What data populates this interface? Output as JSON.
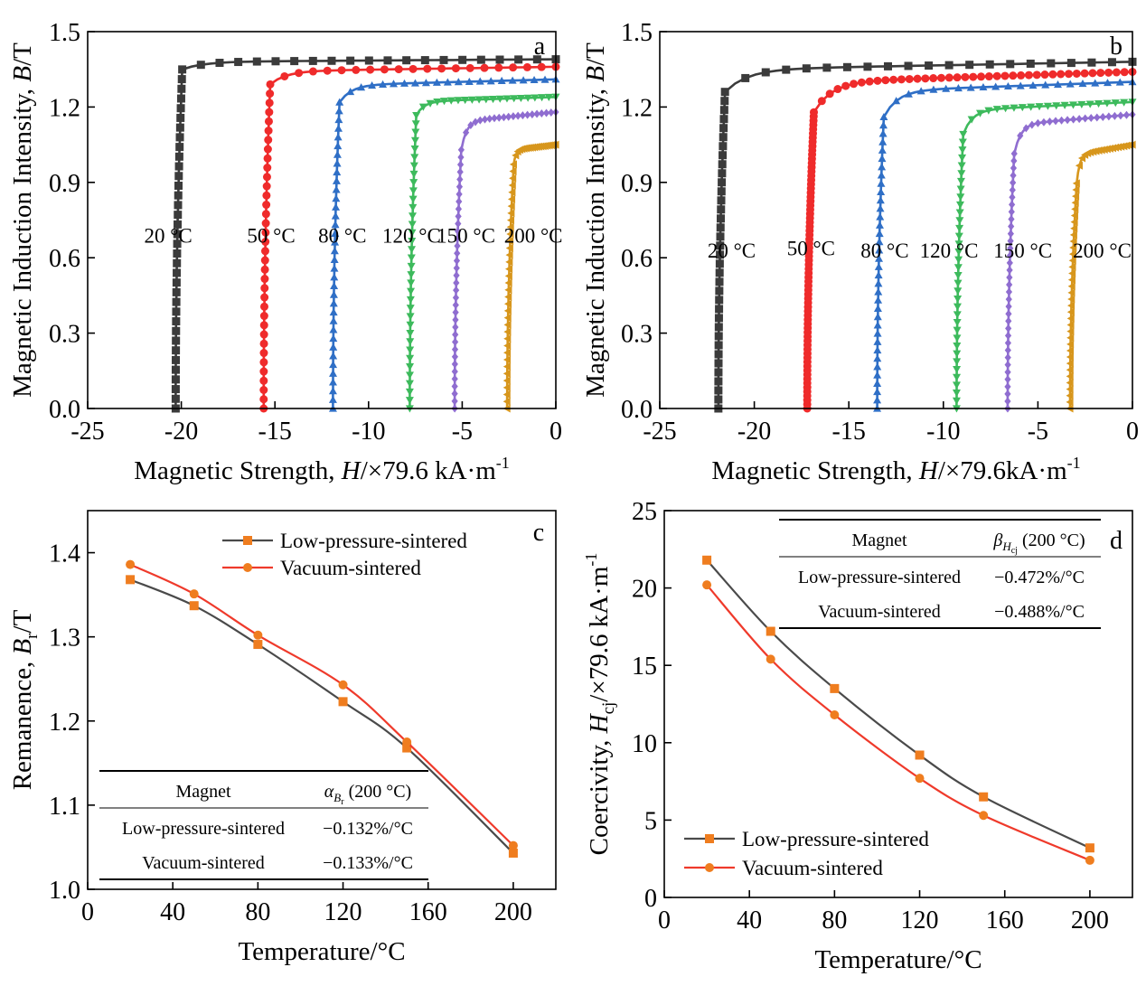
{
  "chart_data": [
    {
      "id": "a",
      "type": "line",
      "panel_label": "a",
      "xlabel_prefix": "Magnetic Strength, ",
      "xlabel_var": "H",
      "xlabel_suffix": "/×79.6 kA·m",
      "xlabel_sup": "-1",
      "ylabel_prefix": "Magnetic Induction Intensity, ",
      "ylabel_var": "B",
      "ylabel_suffix": "/T",
      "xlim": [
        -25,
        0
      ],
      "ylim": [
        0,
        1.5
      ],
      "xticks": [
        "-25",
        "-20",
        "-15",
        "-10",
        "-5",
        "0"
      ],
      "yticks": [
        "0.0",
        "0.3",
        "0.6",
        "0.9",
        "1.2",
        "1.5"
      ],
      "series": [
        {
          "label": "20 °C",
          "color": "#3b3b3b",
          "marker": "square",
          "hc": -20.3,
          "br": 1.37,
          "hk_ratio": 0.985,
          "curve_end": 1.39,
          "label_x": -20.7,
          "label_y": 0.66
        },
        {
          "label": "50 °C",
          "color": "#ef2b2b",
          "marker": "circle",
          "hc": -15.6,
          "br": 1.337,
          "hk_ratio": 0.965,
          "curve_end": 1.36,
          "label_x": -15.2,
          "label_y": 0.66
        },
        {
          "label": "80 °C",
          "color": "#2f6fc6",
          "marker": "triangle-up",
          "hc": -11.9,
          "br": 1.29,
          "hk_ratio": 0.945,
          "curve_end": 1.31,
          "label_x": -11.4,
          "label_y": 0.66
        },
        {
          "label": "120 °C",
          "color": "#3dba5c",
          "marker": "triangle-down",
          "hc": -7.8,
          "br": 1.222,
          "hk_ratio": 0.955,
          "curve_end": 1.24,
          "label_x": -7.7,
          "label_y": 0.66
        },
        {
          "label": "150 °C",
          "color": "#8f6dd0",
          "marker": "diamond",
          "hc": -5.4,
          "br": 1.17,
          "hk_ratio": 0.88,
          "curve_end": 1.18,
          "label_x": -4.8,
          "label_y": 0.66
        },
        {
          "label": "200 °C",
          "color": "#d7961c",
          "marker": "triangle-left",
          "hc": -2.6,
          "br": 1.045,
          "hk_ratio": 0.93,
          "curve_end": 1.05,
          "label_x": -1.2,
          "label_y": 0.66
        }
      ]
    },
    {
      "id": "b",
      "type": "line",
      "panel_label": "b",
      "xlabel_prefix": "Magnetic Strength, ",
      "xlabel_var": "H",
      "xlabel_suffix": "/×79.6kA·m",
      "xlabel_sup": "-1",
      "ylabel_prefix": "Magnetic Induction Intensity, ",
      "ylabel_var": "B",
      "ylabel_suffix": "/T",
      "xlim": [
        -25,
        0
      ],
      "ylim": [
        0,
        1.5
      ],
      "xticks": [
        "-25",
        "-20",
        "-15",
        "-10",
        "-5",
        "0"
      ],
      "yticks": [
        "0.0",
        "0.3",
        "0.6",
        "0.9",
        "1.2",
        "1.5"
      ],
      "series": [
        {
          "label": "20 °C",
          "color": "#3b3b3b",
          "marker": "square",
          "hc": -21.9,
          "br": 1.355,
          "hk_ratio": 0.93,
          "curve_end": 1.38,
          "label_x": -21.2,
          "label_y": 0.6
        },
        {
          "label": "50 °C",
          "color": "#ef2b2b",
          "marker": "circle",
          "hc": -17.2,
          "br": 1.31,
          "hk_ratio": 0.9,
          "curve_end": 1.34,
          "label_x": -17.0,
          "label_y": 0.61
        },
        {
          "label": "80 °C",
          "color": "#2f6fc6",
          "marker": "triangle-up",
          "hc": -13.5,
          "br": 1.275,
          "hk_ratio": 0.91,
          "curve_end": 1.3,
          "label_x": -13.1,
          "label_y": 0.6
        },
        {
          "label": "120 °C",
          "color": "#3dba5c",
          "marker": "triangle-down",
          "hc": -9.3,
          "br": 1.2,
          "hk_ratio": 0.91,
          "curve_end": 1.22,
          "label_x": -9.7,
          "label_y": 0.6
        },
        {
          "label": "150 °C",
          "color": "#8f6dd0",
          "marker": "diamond",
          "hc": -6.6,
          "br": 1.14,
          "hk_ratio": 0.89,
          "curve_end": 1.17,
          "label_x": -5.8,
          "label_y": 0.6
        },
        {
          "label": "200 °C",
          "color": "#d7961c",
          "marker": "triangle-left",
          "hc": -3.3,
          "br": 1.03,
          "hk_ratio": 0.87,
          "curve_end": 1.05,
          "label_x": -1.6,
          "label_y": 0.6
        }
      ]
    },
    {
      "id": "c",
      "type": "line",
      "panel_label": "c",
      "xlabel": "Temperature/°C",
      "ylabel_prefix": "Remanence, ",
      "ylabel_var": "B",
      "ylabel_sub": "r",
      "ylabel_suffix": "/T",
      "xlim": [
        0,
        220
      ],
      "ylim": [
        1.0,
        1.45
      ],
      "xticks": [
        "0",
        "40",
        "80",
        "120",
        "160",
        "200"
      ],
      "yticks": [
        "1.0",
        "1.1",
        "1.2",
        "1.3",
        "1.4"
      ],
      "x": [
        20,
        50,
        80,
        120,
        150,
        200
      ],
      "series": [
        {
          "name": "Low-pressure-sintered",
          "color": "#4a4a4a",
          "marker_color": "#ef7d1f",
          "marker": "square",
          "values": [
            1.368,
            1.337,
            1.291,
            1.223,
            1.168,
            1.043
          ]
        },
        {
          "name": "Vacuum-sintered",
          "color": "#ef3a2b",
          "marker_color": "#ef7d1f",
          "marker": "circle",
          "values": [
            1.386,
            1.351,
            1.302,
            1.243,
            1.175,
            1.052
          ]
        }
      ],
      "table": {
        "header_col1": "Magnet",
        "header_col2_symbol": "α",
        "header_col2_sub": "B",
        "header_col2_subsub": "r",
        "header_col2_suffix": " (200 °C)",
        "rows": [
          {
            "magnet": "Low-pressure-sintered",
            "value": "−0.132%/°C"
          },
          {
            "magnet": "Vacuum-sintered",
            "value": "−0.133%/°C"
          }
        ]
      }
    },
    {
      "id": "d",
      "type": "line",
      "panel_label": "d",
      "xlabel": "Temperature/°C",
      "ylabel_prefix": "Coercivity, ",
      "ylabel_var": "H",
      "ylabel_sub": "cj",
      "ylabel_suffix": "/×79.6 kA·m",
      "ylabel_sup": "-1",
      "xlim": [
        0,
        220
      ],
      "ylim": [
        0,
        25
      ],
      "xticks": [
        "0",
        "40",
        "80",
        "120",
        "160",
        "200"
      ],
      "yticks": [
        "0",
        "5",
        "10",
        "15",
        "20",
        "25"
      ],
      "x": [
        20,
        50,
        80,
        120,
        150,
        200
      ],
      "series": [
        {
          "name": "Low-pressure-sintered",
          "color": "#4a4a4a",
          "marker_color": "#ef7d1f",
          "marker": "square",
          "values": [
            21.8,
            17.2,
            13.5,
            9.2,
            6.5,
            3.2
          ]
        },
        {
          "name": "Vacuum-sintered",
          "color": "#ef3a2b",
          "marker_color": "#ef7d1f",
          "marker": "circle",
          "values": [
            20.2,
            15.4,
            11.8,
            7.7,
            5.3,
            2.4
          ]
        }
      ],
      "table": {
        "header_col1": "Magnet",
        "header_col2_symbol": "β",
        "header_col2_sub": "H",
        "header_col2_subsub": "cj",
        "header_col2_suffix": " (200 °C)",
        "rows": [
          {
            "magnet": "Low-pressure-sintered",
            "value": "−0.472%/°C"
          },
          {
            "magnet": "Vacuum-sintered",
            "value": "−0.488%/°C"
          }
        ]
      }
    }
  ]
}
